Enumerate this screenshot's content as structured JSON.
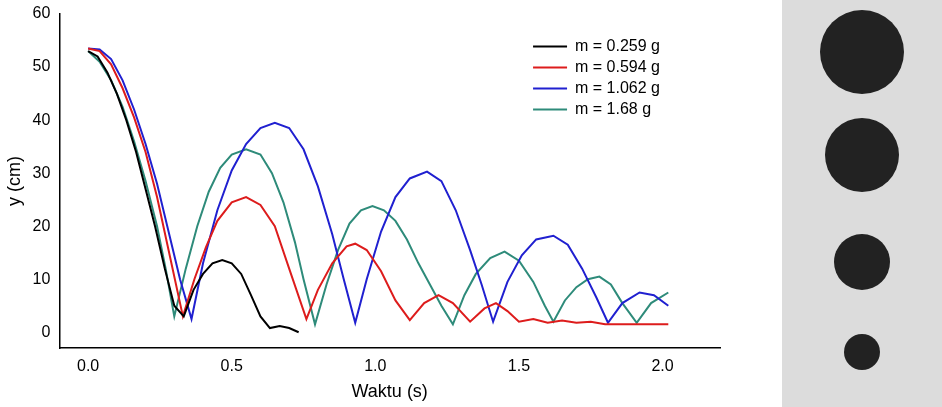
{
  "chart_data": {
    "type": "line",
    "x_label": "Waktu (s)",
    "y_label": "y (cm)",
    "xlim": [
      -0.1,
      2.2
    ],
    "xticks": [
      {
        "value": 0,
        "label": "0.0"
      },
      {
        "value": 0.5,
        "label": "0.5"
      },
      {
        "value": 1,
        "label": "1.0"
      },
      {
        "value": 1.5,
        "label": "1.5"
      },
      {
        "value": 2,
        "label": "2.0"
      }
    ],
    "ylim": [
      -3,
      60
    ],
    "yticks": [
      0,
      10,
      20,
      30,
      40,
      50,
      60
    ],
    "grid": false,
    "legend": "upper right",
    "series": [
      {
        "name": "m = 0.259 g",
        "color": "#000000",
        "x": [
          0,
          0.033,
          0.067,
          0.1,
          0.133,
          0.167,
          0.2,
          0.233,
          0.267,
          0.3,
          0.333,
          0.367,
          0.4,
          0.433,
          0.467,
          0.5,
          0.533,
          0.567,
          0.6,
          0.633,
          0.667,
          0.7,
          0.733
        ],
        "values": [
          53,
          52,
          49,
          45,
          40,
          34,
          27,
          20,
          12,
          5,
          3,
          8,
          11,
          13,
          13.6,
          13,
          11,
          7,
          3,
          0.8,
          1.2,
          0.8,
          0
        ]
      },
      {
        "name": "m = 0.594 g",
        "color": "#dd1c1c",
        "x": [
          0,
          0.04,
          0.08,
          0.12,
          0.16,
          0.2,
          0.24,
          0.28,
          0.33,
          0.37,
          0.41,
          0.45,
          0.5,
          0.55,
          0.6,
          0.65,
          0.7,
          0.76,
          0.8,
          0.85,
          0.9,
          0.93,
          0.97,
          1.02,
          1.07,
          1.12,
          1.17,
          1.22,
          1.27,
          1.33,
          1.38,
          1.42,
          1.46,
          1.5,
          1.55,
          1.6,
          1.65,
          1.7,
          1.75,
          1.8,
          1.9,
          2.02
        ],
        "values": [
          53.5,
          53,
          50.5,
          46,
          40.5,
          34,
          25.5,
          15.5,
          3,
          10,
          16,
          21,
          24.5,
          25.5,
          24,
          20,
          12,
          2.5,
          8,
          13,
          16.2,
          16.7,
          15.5,
          11.5,
          6,
          2.3,
          5.5,
          7,
          5.5,
          2,
          4.5,
          5.5,
          4,
          2,
          2.5,
          1.8,
          2.2,
          1.8,
          2,
          1.5,
          1.5,
          1.5
        ]
      },
      {
        "name": "m = 1.062 g",
        "color": "#2020d0",
        "x": [
          0,
          0.04,
          0.08,
          0.12,
          0.16,
          0.2,
          0.24,
          0.28,
          0.32,
          0.36,
          0.4,
          0.45,
          0.5,
          0.55,
          0.6,
          0.65,
          0.7,
          0.75,
          0.8,
          0.85,
          0.89,
          0.93,
          0.97,
          1.02,
          1.07,
          1.12,
          1.18,
          1.23,
          1.28,
          1.33,
          1.37,
          1.41,
          1.46,
          1.51,
          1.56,
          1.62,
          1.67,
          1.72,
          1.77,
          1.81,
          1.86,
          1.92,
          1.97,
          2.02
        ],
        "values": [
          53.5,
          53.3,
          51.5,
          47.5,
          42,
          35.5,
          28,
          19,
          10,
          2.5,
          13,
          23,
          30.5,
          35.5,
          38.5,
          39.5,
          38.5,
          34.5,
          27.5,
          18.5,
          10,
          1.8,
          10,
          19,
          25.5,
          29,
          30.3,
          28.5,
          23,
          15.5,
          9,
          2,
          9.5,
          14.5,
          17.5,
          18.2,
          16.5,
          12,
          6.5,
          1.8,
          5.5,
          7.5,
          7,
          5
        ]
      },
      {
        "name": "m = 1.68 g",
        "color": "#2e8b7a",
        "x": [
          0,
          0.04,
          0.08,
          0.12,
          0.16,
          0.2,
          0.24,
          0.27,
          0.3,
          0.34,
          0.38,
          0.42,
          0.46,
          0.5,
          0.55,
          0.6,
          0.64,
          0.68,
          0.72,
          0.75,
          0.79,
          0.83,
          0.87,
          0.91,
          0.95,
          0.99,
          1.03,
          1.07,
          1.11,
          1.15,
          1.19,
          1.23,
          1.27,
          1.31,
          1.35,
          1.4,
          1.45,
          1.5,
          1.55,
          1.59,
          1.62,
          1.66,
          1.7,
          1.74,
          1.78,
          1.82,
          1.86,
          1.91,
          1.96,
          2.02
        ],
        "values": [
          53,
          51,
          47.5,
          42.5,
          36,
          28.5,
          20,
          12,
          3,
          12,
          20,
          26.5,
          31,
          33.5,
          34.5,
          33.5,
          30,
          24.5,
          17,
          10,
          1.5,
          9,
          15.5,
          20.5,
          23,
          23.8,
          23,
          21,
          17.5,
          13,
          9,
          5,
          1.5,
          7,
          11,
          14,
          15.2,
          13.5,
          9.5,
          5,
          2,
          6,
          8.5,
          10,
          10.5,
          9,
          5.5,
          1.8,
          5.5,
          7.5
        ]
      }
    ]
  }
}
